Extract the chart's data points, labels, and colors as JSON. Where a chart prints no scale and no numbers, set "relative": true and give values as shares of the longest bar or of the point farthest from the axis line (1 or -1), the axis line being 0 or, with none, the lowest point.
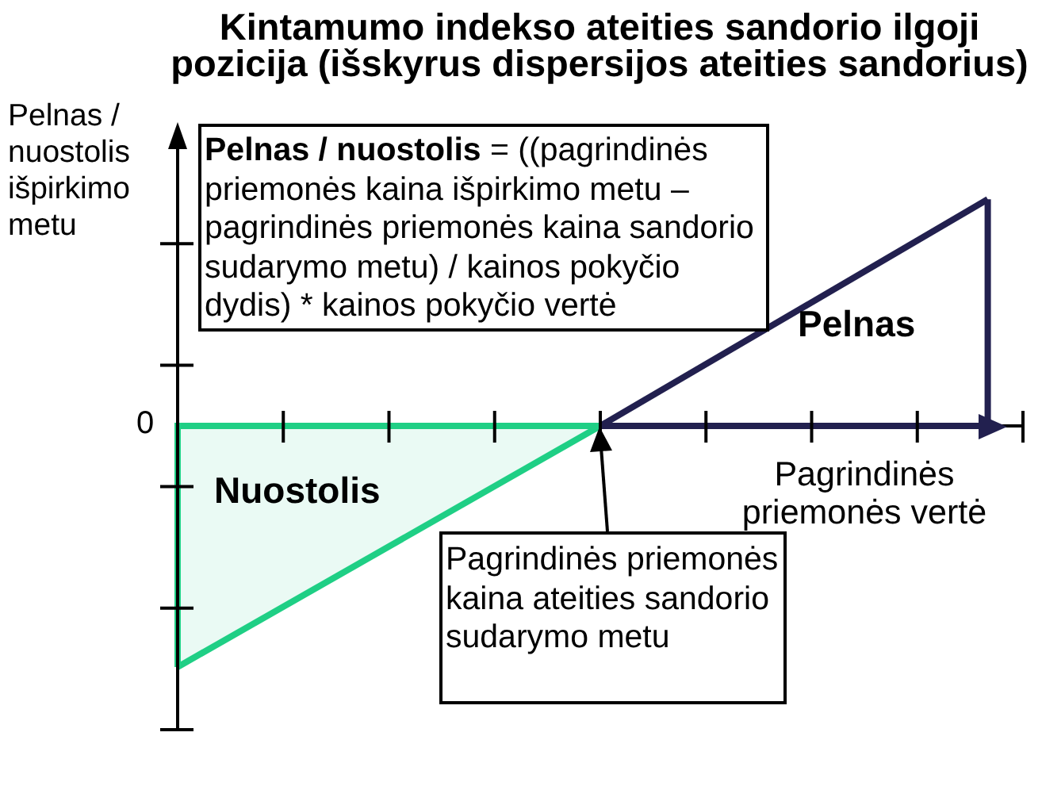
{
  "chart_data": {
    "type": "line",
    "title": "Kintamumo indekso ateities sandorio ilgoji pozicija (išskyrus dispersijos ateities sandorius)",
    "xlabel": "Pagrindinės priemonės vertė",
    "ylabel": "Pelnas / nuostolis išpirkimo metu",
    "relative": true,
    "marker": "none",
    "categories": [
      null,
      null,
      null,
      null,
      null,
      null,
      null,
      null,
      null,
      null,
      null,
      null,
      null,
      null,
      null,
      null,
      null,
      null,
      null,
      null,
      null,
      null,
      null,
      null,
      null
    ],
    "series": [
      {
        "name": "Nuostolis",
        "type": "area",
        "color": "#1fcf85",
        "values": [
          -1,
          null,
          null,
          null,
          null,
          null,
          null,
          null,
          null,
          null,
          null,
          null,
          0,
          null,
          null,
          null,
          null,
          null,
          null,
          null,
          null,
          null,
          null,
          null,
          null
        ]
      },
      {
        "name": "Pelnas",
        "type": "line",
        "color": "#22204f",
        "values": [
          null,
          null,
          null,
          null,
          null,
          null,
          null,
          null,
          null,
          null,
          null,
          null,
          0,
          null,
          null,
          null,
          null,
          null,
          null,
          null,
          null,
          null,
          null,
          0.94,
          null
        ]
      }
    ],
    "annotations": [
      "Pelnas / nuostolis = ((pagrindinės priemonės kaina išpirkimo metu – pagrindinės priemonės kaina sandorio sudarymo metu) / kainos pokyčio dydis) * kainos pokyčio vertė",
      "Pagrindinės priemonės kaina ateities sandorio sudarymo metu",
      "0"
    ]
  }
}
